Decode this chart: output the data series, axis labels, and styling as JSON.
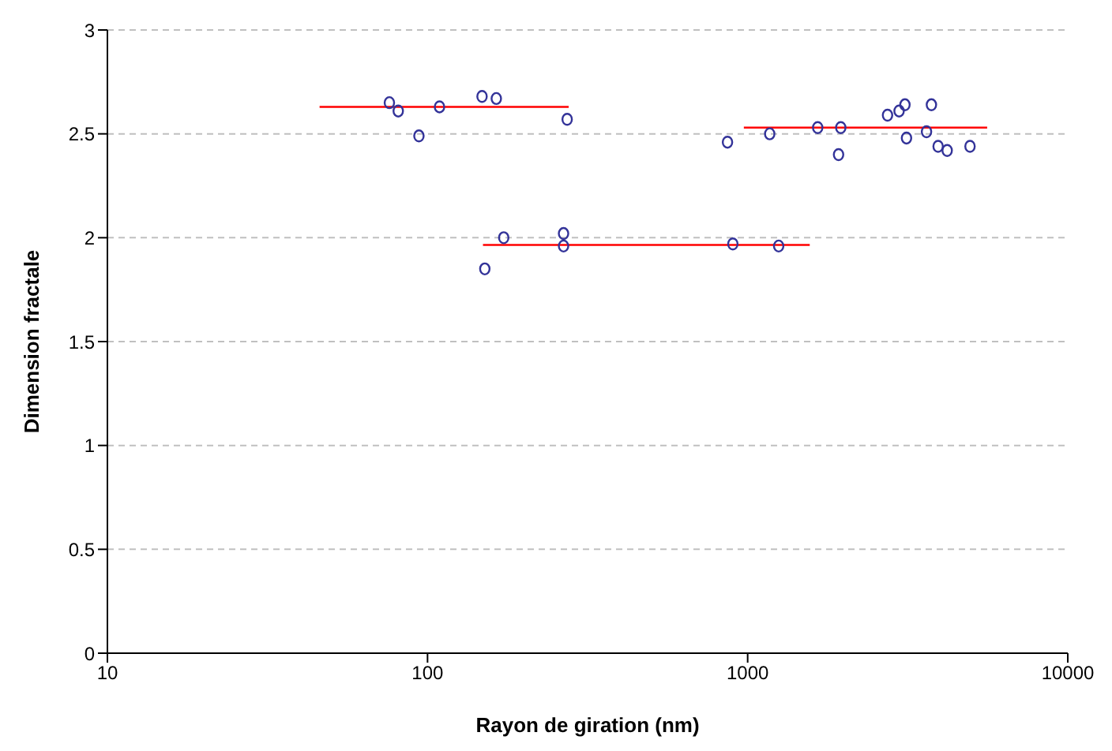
{
  "chart_data": {
    "type": "scatter",
    "xlabel": "Rayon de giration (nm)",
    "ylabel": "Dimension fractale",
    "log": "x",
    "xlim": [
      10,
      10000
    ],
    "xticks": [
      10,
      100,
      1000,
      10000
    ],
    "ylim": [
      0,
      3
    ],
    "yticks": [
      0,
      0.5,
      1,
      1.5,
      2,
      2.5,
      3
    ],
    "grid": "y",
    "series": [
      {
        "marker": "circle",
        "color": "#333399",
        "x": [
          76,
          81,
          94,
          109,
          148,
          164,
          273,
          151,
          173,
          266,
          266,
          899,
          1250,
          865,
          1172,
          1655,
          1954,
          1923,
          2735,
          2972,
          3100,
          3750,
          3135,
          3620,
          3935,
          4200,
          4950
        ],
        "values": [
          2.65,
          2.61,
          2.49,
          2.63,
          2.68,
          2.67,
          2.57,
          1.85,
          2.0,
          2.02,
          1.96,
          1.97,
          1.96,
          2.46,
          2.5,
          2.53,
          2.53,
          2.4,
          2.59,
          2.61,
          2.64,
          2.64,
          2.48,
          2.51,
          2.44,
          2.42,
          2.44
        ]
      },
      {
        "type": "line",
        "marker": "none",
        "color": "#ff0000",
        "x": [
          46,
          276
        ],
        "values": [
          2.63,
          2.63
        ]
      },
      {
        "type": "line",
        "marker": "none",
        "color": "#ff0000",
        "x": [
          149,
          1563
        ],
        "values": [
          1.965,
          1.965
        ]
      },
      {
        "type": "line",
        "marker": "none",
        "color": "#ff0000",
        "x": [
          973,
          5600
        ],
        "values": [
          2.53,
          2.53
        ]
      }
    ]
  }
}
